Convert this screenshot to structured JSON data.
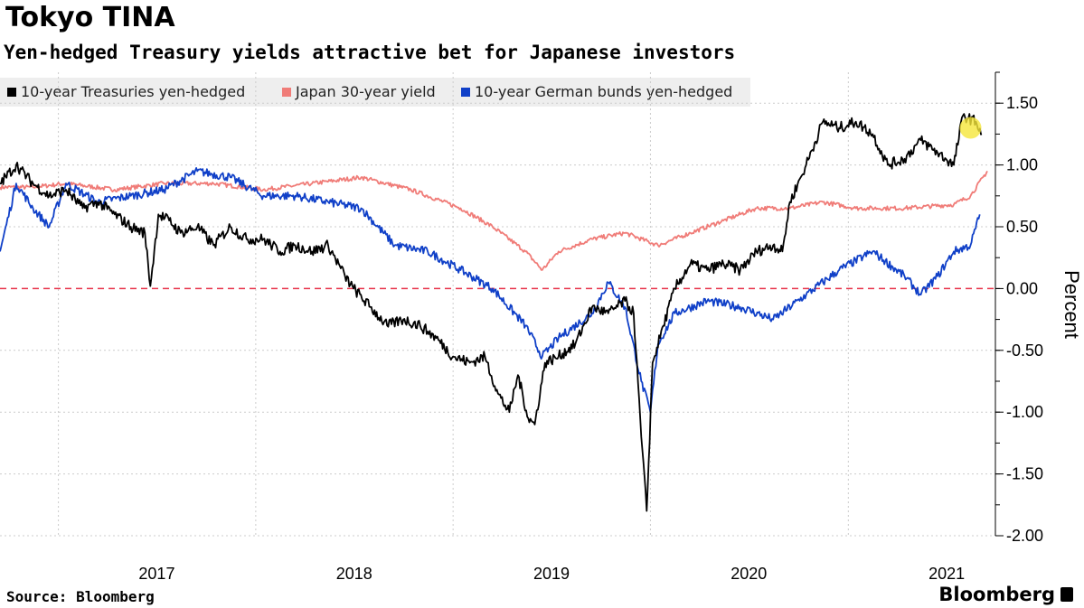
{
  "chart_data": {
    "type": "line",
    "title": "Tokyo TINA",
    "subtitle": "Yen-hedged Treasury yields attractive bet for Japanese investors",
    "ylabel": "Percent",
    "xlabel": "",
    "ylim": [
      -2.0,
      1.75
    ],
    "yticks": [
      1.5,
      1.0,
      0.5,
      0.0,
      -0.5,
      -1.0,
      -1.5,
      -2.0
    ],
    "ytick_labels": [
      "1.50",
      "1.00",
      "0.50",
      "0.00",
      "-0.50",
      "-1.00",
      "-1.50",
      "-2.00"
    ],
    "xlim": [
      "2016-09-15",
      "2021-09-30"
    ],
    "xtick_labels": [
      "2017",
      "2018",
      "2019",
      "2020",
      "2021"
    ],
    "xtick_dates": [
      "2017-01-01",
      "2018-01-01",
      "2019-01-01",
      "2020-01-01",
      "2021-01-01"
    ],
    "grid": true,
    "legend_position": "top-left",
    "reference_line": {
      "y": 0.0,
      "style": "dashed",
      "color": "#e8334a"
    },
    "highlight_marker": {
      "date": "2021-08-15",
      "y": 1.3,
      "color": "#f5e63a"
    },
    "series": [
      {
        "name": "10-year Treasuries yen-hedged",
        "color": "#000000",
        "points": [
          [
            "2016-09-15",
            0.85
          ],
          [
            "2016-10-15",
            1.0
          ],
          [
            "2016-11-15",
            0.85
          ],
          [
            "2016-12-15",
            0.75
          ],
          [
            "2017-01-15",
            0.8
          ],
          [
            "2017-02-15",
            0.65
          ],
          [
            "2017-03-15",
            0.7
          ],
          [
            "2017-04-15",
            0.6
          ],
          [
            "2017-05-15",
            0.5
          ],
          [
            "2017-06-10",
            0.45
          ],
          [
            "2017-06-20",
            0.02
          ],
          [
            "2017-07-05",
            0.6
          ],
          [
            "2017-07-25",
            0.55
          ],
          [
            "2017-08-15",
            0.45
          ],
          [
            "2017-09-15",
            0.5
          ],
          [
            "2017-10-15",
            0.35
          ],
          [
            "2017-11-15",
            0.5
          ],
          [
            "2017-12-15",
            0.4
          ],
          [
            "2018-01-15",
            0.4
          ],
          [
            "2018-02-15",
            0.3
          ],
          [
            "2018-03-15",
            0.35
          ],
          [
            "2018-04-15",
            0.3
          ],
          [
            "2018-05-15",
            0.35
          ],
          [
            "2018-06-15",
            0.1
          ],
          [
            "2018-07-01",
            0.0
          ],
          [
            "2018-08-01",
            -0.15
          ],
          [
            "2018-09-01",
            -0.3
          ],
          [
            "2018-10-01",
            -0.25
          ],
          [
            "2018-11-01",
            -0.3
          ],
          [
            "2018-12-01",
            -0.4
          ],
          [
            "2019-01-01",
            -0.55
          ],
          [
            "2019-02-01",
            -0.6
          ],
          [
            "2019-03-01",
            -0.55
          ],
          [
            "2019-03-25",
            -0.85
          ],
          [
            "2019-04-15",
            -1.0
          ],
          [
            "2019-05-01",
            -0.7
          ],
          [
            "2019-05-20",
            -1.05
          ],
          [
            "2019-06-01",
            -1.1
          ],
          [
            "2019-06-20",
            -0.6
          ],
          [
            "2019-07-15",
            -0.55
          ],
          [
            "2019-08-15",
            -0.45
          ],
          [
            "2019-09-15",
            -0.15
          ],
          [
            "2019-10-15",
            -0.2
          ],
          [
            "2019-11-15",
            -0.1
          ],
          [
            "2019-12-01",
            -0.2
          ],
          [
            "2019-12-15",
            -1.2
          ],
          [
            "2019-12-25",
            -1.8
          ],
          [
            "2020-01-05",
            -0.6
          ],
          [
            "2020-01-25",
            -0.3
          ],
          [
            "2020-02-15",
            0.0
          ],
          [
            "2020-03-15",
            0.2
          ],
          [
            "2020-04-15",
            0.15
          ],
          [
            "2020-05-15",
            0.2
          ],
          [
            "2020-06-15",
            0.15
          ],
          [
            "2020-07-15",
            0.3
          ],
          [
            "2020-08-15",
            0.35
          ],
          [
            "2020-09-01",
            0.3
          ],
          [
            "2020-09-15",
            0.7
          ],
          [
            "2020-10-15",
            1.0
          ],
          [
            "2020-11-15",
            1.35
          ],
          [
            "2020-12-15",
            1.3
          ],
          [
            "2021-01-15",
            1.35
          ],
          [
            "2021-02-15",
            1.25
          ],
          [
            "2021-03-15",
            1.0
          ],
          [
            "2021-04-15",
            1.05
          ],
          [
            "2021-05-15",
            1.2
          ],
          [
            "2021-06-15",
            1.1
          ],
          [
            "2021-07-15",
            1.0
          ],
          [
            "2021-08-01",
            1.4
          ],
          [
            "2021-08-25",
            1.35
          ],
          [
            "2021-09-05",
            1.25
          ]
        ]
      },
      {
        "name": "Japan 30-year yield",
        "color": "#f07c78",
        "points": [
          [
            "2016-09-15",
            0.82
          ],
          [
            "2016-11-15",
            0.82
          ],
          [
            "2017-01-15",
            0.85
          ],
          [
            "2017-04-15",
            0.8
          ],
          [
            "2017-07-15",
            0.85
          ],
          [
            "2017-10-15",
            0.85
          ],
          [
            "2018-01-15",
            0.8
          ],
          [
            "2018-04-15",
            0.85
          ],
          [
            "2018-07-15",
            0.9
          ],
          [
            "2018-10-15",
            0.8
          ],
          [
            "2019-01-15",
            0.65
          ],
          [
            "2019-03-15",
            0.5
          ],
          [
            "2019-05-15",
            0.3
          ],
          [
            "2019-06-15",
            0.15
          ],
          [
            "2019-07-15",
            0.3
          ],
          [
            "2019-09-15",
            0.4
          ],
          [
            "2019-11-15",
            0.45
          ],
          [
            "2020-01-15",
            0.35
          ],
          [
            "2020-03-15",
            0.45
          ],
          [
            "2020-05-15",
            0.55
          ],
          [
            "2020-07-15",
            0.65
          ],
          [
            "2020-09-15",
            0.65
          ],
          [
            "2020-11-15",
            0.7
          ],
          [
            "2021-01-15",
            0.65
          ],
          [
            "2021-04-15",
            0.65
          ],
          [
            "2021-07-15",
            0.68
          ],
          [
            "2021-08-15",
            0.75
          ],
          [
            "2021-09-15",
            0.95
          ]
        ]
      },
      {
        "name": "10-year German bunds yen-hedged",
        "color": "#1040c8",
        "points": [
          [
            "2016-09-15",
            0.3
          ],
          [
            "2016-10-15",
            0.85
          ],
          [
            "2016-11-15",
            0.65
          ],
          [
            "2016-12-15",
            0.5
          ],
          [
            "2017-01-15",
            0.85
          ],
          [
            "2017-03-15",
            0.7
          ],
          [
            "2017-05-15",
            0.75
          ],
          [
            "2017-07-15",
            0.8
          ],
          [
            "2017-09-15",
            0.95
          ],
          [
            "2017-11-15",
            0.9
          ],
          [
            "2018-01-15",
            0.75
          ],
          [
            "2018-03-15",
            0.75
          ],
          [
            "2018-05-15",
            0.7
          ],
          [
            "2018-07-15",
            0.65
          ],
          [
            "2018-09-15",
            0.35
          ],
          [
            "2018-11-15",
            0.3
          ],
          [
            "2019-01-15",
            0.15
          ],
          [
            "2019-03-15",
            0.0
          ],
          [
            "2019-05-15",
            -0.3
          ],
          [
            "2019-06-15",
            -0.55
          ],
          [
            "2019-07-15",
            -0.4
          ],
          [
            "2019-09-15",
            -0.2
          ],
          [
            "2019-10-15",
            0.05
          ],
          [
            "2019-11-15",
            -0.15
          ],
          [
            "2019-12-15",
            -0.75
          ],
          [
            "2020-01-01",
            -1.0
          ],
          [
            "2020-01-15",
            -0.45
          ],
          [
            "2020-02-15",
            -0.2
          ],
          [
            "2020-04-15",
            -0.1
          ],
          [
            "2020-06-15",
            -0.15
          ],
          [
            "2020-08-15",
            -0.25
          ],
          [
            "2020-10-15",
            -0.05
          ],
          [
            "2020-12-15",
            0.15
          ],
          [
            "2021-02-15",
            0.3
          ],
          [
            "2021-04-15",
            0.1
          ],
          [
            "2021-05-15",
            -0.05
          ],
          [
            "2021-06-15",
            0.1
          ],
          [
            "2021-07-15",
            0.3
          ],
          [
            "2021-08-15",
            0.35
          ],
          [
            "2021-09-01",
            0.6
          ]
        ]
      }
    ]
  },
  "footer": {
    "source": "Source: Bloomberg",
    "brand": "Bloomberg"
  }
}
